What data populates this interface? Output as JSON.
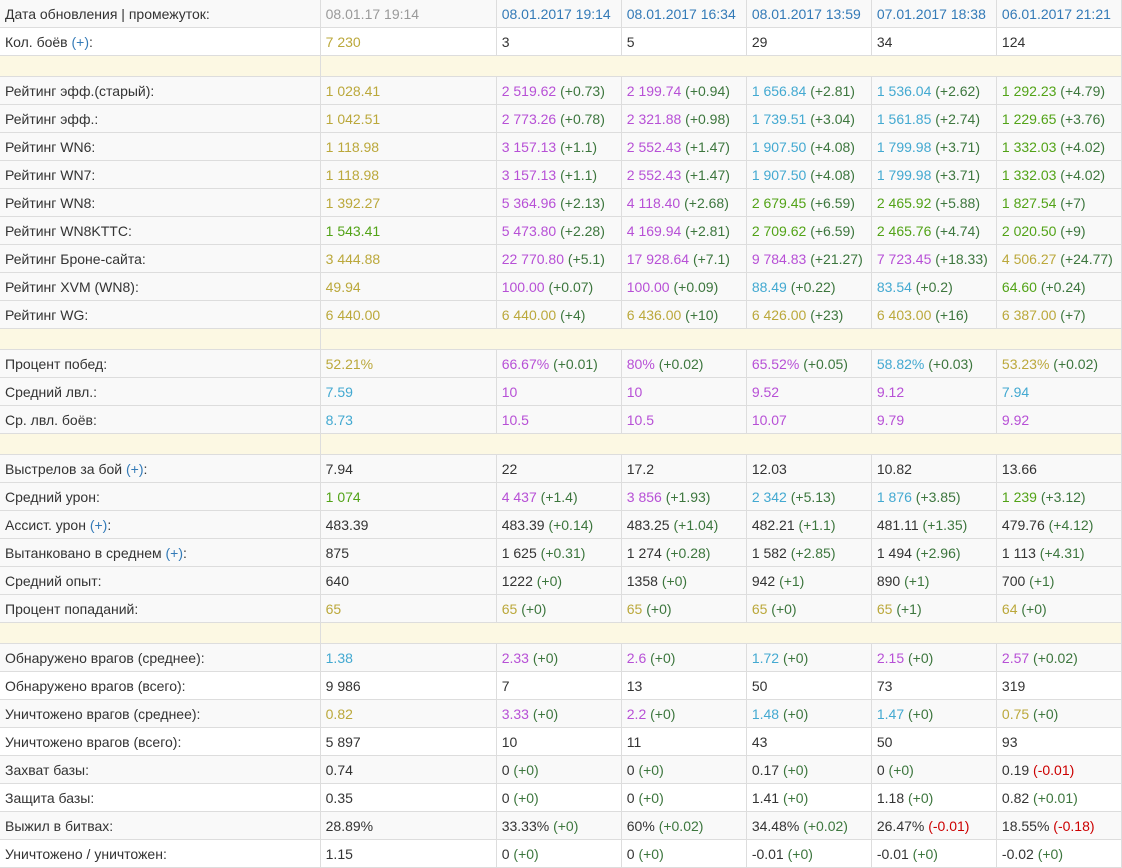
{
  "colors": {
    "olive": "#bba83b",
    "purple": "#b750d6",
    "cyan": "#43a9d1",
    "green": "#52a317",
    "blue": "#337ab7",
    "delta_positive": "#3c763d",
    "delta_negative": "#cc0000",
    "separator": "#fcf8e3"
  },
  "header": {
    "label": "Дата обновления | промежуток:",
    "total": "08.01.17 19:14",
    "periods": [
      "08.01.2017 19:14",
      "08.01.2017 16:34",
      "08.01.2017 13:59",
      "07.01.2017 18:38",
      "06.01.2017 21:21"
    ]
  },
  "battles": {
    "label": "Кол. боёв",
    "help": "(+)",
    "colon": ":",
    "total": "7 230",
    "periods": [
      "3",
      "5",
      "29",
      "34",
      "124"
    ]
  },
  "rows": [
    {
      "sep": true
    },
    {
      "label": "Рейтинг эфф.(старый):",
      "total": "1 028.41",
      "total_color": "olive",
      "cells": [
        {
          "v": "2 519.62",
          "c": "purple",
          "d": "(+0.73)"
        },
        {
          "v": "2 199.74",
          "c": "purple",
          "d": "(+0.94)"
        },
        {
          "v": "1 656.84",
          "c": "cyan",
          "d": "(+2.81)"
        },
        {
          "v": "1 536.04",
          "c": "cyan",
          "d": "(+2.62)"
        },
        {
          "v": "1 292.23",
          "c": "green",
          "d": "(+4.79)"
        }
      ]
    },
    {
      "label": "Рейтинг эфф.:",
      "total": "1 042.51",
      "total_color": "olive",
      "cells": [
        {
          "v": "2 773.26",
          "c": "purple",
          "d": "(+0.78)"
        },
        {
          "v": "2 321.88",
          "c": "purple",
          "d": "(+0.98)"
        },
        {
          "v": "1 739.51",
          "c": "cyan",
          "d": "(+3.04)"
        },
        {
          "v": "1 561.85",
          "c": "cyan",
          "d": "(+2.74)"
        },
        {
          "v": "1 229.65",
          "c": "green",
          "d": "(+3.76)"
        }
      ]
    },
    {
      "label": "Рейтинг WN6:",
      "total": "1 118.98",
      "total_color": "olive",
      "cells": [
        {
          "v": "3 157.13",
          "c": "purple",
          "d": "(+1.1)"
        },
        {
          "v": "2 552.43",
          "c": "purple",
          "d": "(+1.47)"
        },
        {
          "v": "1 907.50",
          "c": "cyan",
          "d": "(+4.08)"
        },
        {
          "v": "1 799.98",
          "c": "cyan",
          "d": "(+3.71)"
        },
        {
          "v": "1 332.03",
          "c": "green",
          "d": "(+4.02)"
        }
      ]
    },
    {
      "label": "Рейтинг WN7:",
      "total": "1 118.98",
      "total_color": "olive",
      "cells": [
        {
          "v": "3 157.13",
          "c": "purple",
          "d": "(+1.1)"
        },
        {
          "v": "2 552.43",
          "c": "purple",
          "d": "(+1.47)"
        },
        {
          "v": "1 907.50",
          "c": "cyan",
          "d": "(+4.08)"
        },
        {
          "v": "1 799.98",
          "c": "cyan",
          "d": "(+3.71)"
        },
        {
          "v": "1 332.03",
          "c": "green",
          "d": "(+4.02)"
        }
      ]
    },
    {
      "label": "Рейтинг WN8:",
      "total": "1 392.27",
      "total_color": "olive",
      "cells": [
        {
          "v": "5 364.96",
          "c": "purple",
          "d": "(+2.13)"
        },
        {
          "v": "4 118.40",
          "c": "purple",
          "d": "(+2.68)"
        },
        {
          "v": "2 679.45",
          "c": "green",
          "d": "(+6.59)"
        },
        {
          "v": "2 465.92",
          "c": "green",
          "d": "(+5.88)"
        },
        {
          "v": "1 827.54",
          "c": "green",
          "d": "(+7)"
        }
      ]
    },
    {
      "label": "Рейтинг WN8KTTC:",
      "total": "1 543.41",
      "total_color": "green",
      "cells": [
        {
          "v": "5 473.80",
          "c": "purple",
          "d": "(+2.28)"
        },
        {
          "v": "4 169.94",
          "c": "purple",
          "d": "(+2.81)"
        },
        {
          "v": "2 709.62",
          "c": "green",
          "d": "(+6.59)"
        },
        {
          "v": "2 465.76",
          "c": "green",
          "d": "(+4.74)"
        },
        {
          "v": "2 020.50",
          "c": "green",
          "d": "(+9)"
        }
      ]
    },
    {
      "label": "Рейтинг Броне-сайта:",
      "total": "3 444.88",
      "total_color": "olive",
      "cells": [
        {
          "v": "22 770.80",
          "c": "purple",
          "d": "(+5.1)"
        },
        {
          "v": "17 928.64",
          "c": "purple",
          "d": "(+7.1)"
        },
        {
          "v": "9 784.83",
          "c": "purple",
          "d": "(+21.27)"
        },
        {
          "v": "7 723.45",
          "c": "purple",
          "d": "(+18.33)"
        },
        {
          "v": "4 506.27",
          "c": "olive",
          "d": "(+24.77)"
        }
      ]
    },
    {
      "label": "Рейтинг XVM (WN8):",
      "total": "49.94",
      "total_color": "olive",
      "cells": [
        {
          "v": "100.00",
          "c": "purple",
          "d": "(+0.07)"
        },
        {
          "v": "100.00",
          "c": "purple",
          "d": "(+0.09)"
        },
        {
          "v": "88.49",
          "c": "cyan",
          "d": "(+0.22)"
        },
        {
          "v": "83.54",
          "c": "cyan",
          "d": "(+0.2)"
        },
        {
          "v": "64.60",
          "c": "green",
          "d": "(+0.24)"
        }
      ]
    },
    {
      "label": "Рейтинг WG:",
      "total": "6 440.00",
      "total_color": "olive",
      "cells": [
        {
          "v": "6 440.00",
          "c": "olive",
          "d": "(+4)"
        },
        {
          "v": "6 436.00",
          "c": "olive",
          "d": "(+10)"
        },
        {
          "v": "6 426.00",
          "c": "olive",
          "d": "(+23)"
        },
        {
          "v": "6 403.00",
          "c": "olive",
          "d": "(+16)"
        },
        {
          "v": "6 387.00",
          "c": "olive",
          "d": "(+7)"
        }
      ]
    },
    {
      "sep": true
    },
    {
      "label": "Процент побед:",
      "total": "52.21%",
      "total_color": "olive",
      "cells": [
        {
          "v": "66.67%",
          "c": "purple",
          "d": "(+0.01)"
        },
        {
          "v": "80%",
          "c": "purple",
          "d": "(+0.02)"
        },
        {
          "v": "65.52%",
          "c": "purple",
          "d": "(+0.05)"
        },
        {
          "v": "58.82%",
          "c": "cyan",
          "d": "(+0.03)"
        },
        {
          "v": "53.23%",
          "c": "olive",
          "d": "(+0.02)"
        }
      ]
    },
    {
      "label": "Средний лвл.:",
      "total": "7.59",
      "total_color": "cyan",
      "cells": [
        {
          "v": "10",
          "c": "purple"
        },
        {
          "v": "10",
          "c": "purple"
        },
        {
          "v": "9.52",
          "c": "purple"
        },
        {
          "v": "9.12",
          "c": "purple"
        },
        {
          "v": "7.94",
          "c": "cyan"
        }
      ]
    },
    {
      "label": "Ср. лвл. боёв:",
      "total": "8.73",
      "total_color": "cyan",
      "cells": [
        {
          "v": "10.5",
          "c": "purple"
        },
        {
          "v": "10.5",
          "c": "purple"
        },
        {
          "v": "10.07",
          "c": "purple"
        },
        {
          "v": "9.79",
          "c": "purple"
        },
        {
          "v": "9.92",
          "c": "purple"
        }
      ]
    },
    {
      "sep": true
    },
    {
      "label": "Выстрелов за бой",
      "help": "(+)",
      "colon": ":",
      "total": "7.94",
      "total_color": "plain",
      "cells": [
        {
          "v": "22",
          "c": "plain"
        },
        {
          "v": "17.2",
          "c": "plain"
        },
        {
          "v": "12.03",
          "c": "plain"
        },
        {
          "v": "10.82",
          "c": "plain"
        },
        {
          "v": "13.66",
          "c": "plain"
        }
      ]
    },
    {
      "label": "Средний урон:",
      "total": "1 074",
      "total_color": "green",
      "cells": [
        {
          "v": "4 437",
          "c": "purple",
          "d": "(+1.4)"
        },
        {
          "v": "3 856",
          "c": "purple",
          "d": "(+1.93)"
        },
        {
          "v": "2 342",
          "c": "cyan",
          "d": "(+5.13)"
        },
        {
          "v": "1 876",
          "c": "cyan",
          "d": "(+3.85)"
        },
        {
          "v": "1 239",
          "c": "green",
          "d": "(+3.12)"
        }
      ]
    },
    {
      "label": "Ассист. урон",
      "help": "(+)",
      "colon": ":",
      "total": "483.39",
      "total_color": "plain",
      "cells": [
        {
          "v": "483.39",
          "c": "plain",
          "d": "(+0.14)"
        },
        {
          "v": "483.25",
          "c": "plain",
          "d": "(+1.04)"
        },
        {
          "v": "482.21",
          "c": "plain",
          "d": "(+1.1)"
        },
        {
          "v": "481.11",
          "c": "plain",
          "d": "(+1.35)"
        },
        {
          "v": "479.76",
          "c": "plain",
          "d": "(+4.12)"
        }
      ]
    },
    {
      "label": "Вытанковано в среднем",
      "help": "(+)",
      "colon": ":",
      "total": "875",
      "total_color": "plain",
      "cells": [
        {
          "v": "1 625",
          "c": "plain",
          "d": "(+0.31)"
        },
        {
          "v": "1 274",
          "c": "plain",
          "d": "(+0.28)"
        },
        {
          "v": "1 582",
          "c": "plain",
          "d": "(+2.85)"
        },
        {
          "v": "1 494",
          "c": "plain",
          "d": "(+2.96)"
        },
        {
          "v": "1 113",
          "c": "plain",
          "d": "(+4.31)"
        }
      ]
    },
    {
      "label": "Средний опыт:",
      "total": "640",
      "total_color": "plain",
      "cells": [
        {
          "v": "1222",
          "c": "plain",
          "d": "(+0)"
        },
        {
          "v": "1358",
          "c": "plain",
          "d": "(+0)"
        },
        {
          "v": "942",
          "c": "plain",
          "d": "(+1)"
        },
        {
          "v": "890",
          "c": "plain",
          "d": "(+1)"
        },
        {
          "v": "700",
          "c": "plain",
          "d": "(+1)"
        }
      ]
    },
    {
      "label": "Процент попаданий:",
      "total": "65",
      "total_color": "olive",
      "cells": [
        {
          "v": "65",
          "c": "olive",
          "d": "(+0)"
        },
        {
          "v": "65",
          "c": "olive",
          "d": "(+0)"
        },
        {
          "v": "65",
          "c": "olive",
          "d": "(+0)"
        },
        {
          "v": "65",
          "c": "olive",
          "d": "(+1)"
        },
        {
          "v": "64",
          "c": "olive",
          "d": "(+0)"
        }
      ]
    },
    {
      "sep": true
    },
    {
      "label": "Обнаружено врагов (среднее):",
      "total": "1.38",
      "total_color": "cyan",
      "cells": [
        {
          "v": "2.33",
          "c": "purple",
          "d": "(+0)"
        },
        {
          "v": "2.6",
          "c": "purple",
          "d": "(+0)"
        },
        {
          "v": "1.72",
          "c": "cyan",
          "d": "(+0)"
        },
        {
          "v": "2.15",
          "c": "purple",
          "d": "(+0)"
        },
        {
          "v": "2.57",
          "c": "purple",
          "d": "(+0.02)"
        }
      ]
    },
    {
      "label": "Обнаружено врагов (всего):",
      "total": "9 986",
      "total_color": "plain",
      "cells": [
        {
          "v": "7",
          "c": "plain"
        },
        {
          "v": "13",
          "c": "plain"
        },
        {
          "v": "50",
          "c": "plain"
        },
        {
          "v": "73",
          "c": "plain"
        },
        {
          "v": "319",
          "c": "plain"
        }
      ]
    },
    {
      "label": "Уничтожено врагов (среднее):",
      "total": "0.82",
      "total_color": "olive",
      "cells": [
        {
          "v": "3.33",
          "c": "purple",
          "d": "(+0)"
        },
        {
          "v": "2.2",
          "c": "purple",
          "d": "(+0)"
        },
        {
          "v": "1.48",
          "c": "cyan",
          "d": "(+0)"
        },
        {
          "v": "1.47",
          "c": "cyan",
          "d": "(+0)"
        },
        {
          "v": "0.75",
          "c": "olive",
          "d": "(+0)"
        }
      ]
    },
    {
      "label": "Уничтожено врагов (всего):",
      "total": "5 897",
      "total_color": "plain",
      "cells": [
        {
          "v": "10",
          "c": "plain"
        },
        {
          "v": "11",
          "c": "plain"
        },
        {
          "v": "43",
          "c": "plain"
        },
        {
          "v": "50",
          "c": "plain"
        },
        {
          "v": "93",
          "c": "plain"
        }
      ]
    },
    {
      "label": "Захват базы:",
      "total": "0.74",
      "total_color": "plain",
      "cells": [
        {
          "v": "0",
          "c": "plain",
          "d": "(+0)"
        },
        {
          "v": "0",
          "c": "plain",
          "d": "(+0)"
        },
        {
          "v": "0.17",
          "c": "plain",
          "d": "(+0)"
        },
        {
          "v": "0",
          "c": "plain",
          "d": "(+0)"
        },
        {
          "v": "0.19",
          "c": "plain",
          "d": "(-0.01)",
          "neg": true
        }
      ]
    },
    {
      "label": "Защита базы:",
      "total": "0.35",
      "total_color": "plain",
      "cells": [
        {
          "v": "0",
          "c": "plain",
          "d": "(+0)"
        },
        {
          "v": "0",
          "c": "plain",
          "d": "(+0)"
        },
        {
          "v": "1.41",
          "c": "plain",
          "d": "(+0)"
        },
        {
          "v": "1.18",
          "c": "plain",
          "d": "(+0)"
        },
        {
          "v": "0.82",
          "c": "plain",
          "d": "(+0.01)"
        }
      ]
    },
    {
      "label": "Выжил в битвах:",
      "total": "28.89%",
      "total_color": "plain",
      "cells": [
        {
          "v": "33.33%",
          "c": "plain",
          "d": "(+0)"
        },
        {
          "v": "60%",
          "c": "plain",
          "d": "(+0.02)"
        },
        {
          "v": "34.48%",
          "c": "plain",
          "d": "(+0.02)"
        },
        {
          "v": "26.47%",
          "c": "plain",
          "d": "(-0.01)",
          "neg": true
        },
        {
          "v": "18.55%",
          "c": "plain",
          "d": "(-0.18)",
          "neg": true
        }
      ]
    },
    {
      "label": "Уничтожено / уничтожен:",
      "total": "1.15",
      "total_color": "plain",
      "cells": [
        {
          "v": "0",
          "c": "plain",
          "d": "(+0)"
        },
        {
          "v": "0",
          "c": "plain",
          "d": "(+0)"
        },
        {
          "v": "-0.01",
          "c": "plain",
          "d": "(+0)"
        },
        {
          "v": "-0.01",
          "c": "plain",
          "d": "(+0)"
        },
        {
          "v": "-0.02",
          "c": "plain",
          "d": "(+0)"
        }
      ]
    }
  ]
}
